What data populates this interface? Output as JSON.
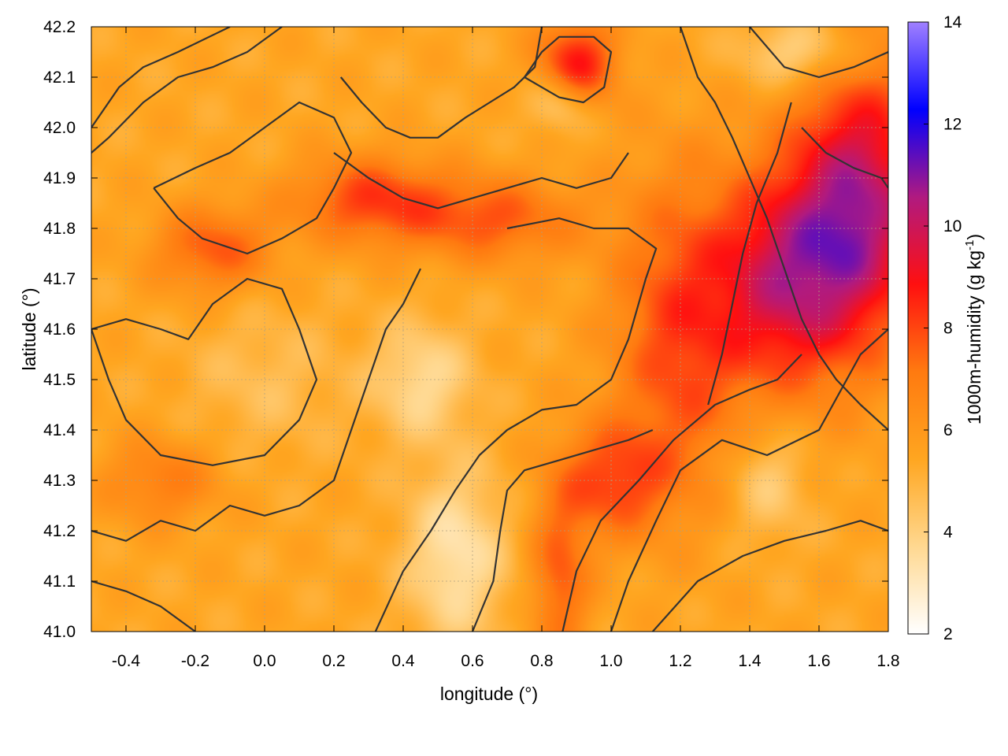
{
  "chart_data": {
    "type": "heatmap",
    "title": "",
    "xlabel": "longitude (°)",
    "ylabel": "latitude (°)",
    "colorbar_label": "1000m-humidity (g kg",
    "colorbar_label_sup": "-1",
    "colorbar_label_end": ")",
    "xlim": [
      -0.5,
      1.8
    ],
    "ylim": [
      41.0,
      42.2
    ],
    "clim": [
      2,
      14
    ],
    "x_ticks": [
      -0.4,
      -0.2,
      0.0,
      0.2,
      0.4,
      0.6,
      0.8,
      1.0,
      1.2,
      1.4,
      1.6,
      1.8
    ],
    "x_tick_labels": [
      "-0.4",
      "-0.2",
      "0.0",
      "0.2",
      "0.4",
      "0.6",
      "0.8",
      "1.0",
      "1.2",
      "1.4",
      "1.6",
      "1.8"
    ],
    "y_ticks": [
      41.0,
      41.1,
      41.2,
      41.3,
      41.4,
      41.5,
      41.6,
      41.7,
      41.8,
      41.9,
      42.0,
      42.1,
      42.2
    ],
    "y_tick_labels": [
      "41.0",
      "41.1",
      "41.2",
      "41.3",
      "41.4",
      "41.5",
      "41.6",
      "41.7",
      "41.8",
      "41.9",
      "42.0",
      "42.1",
      "42.2"
    ],
    "c_ticks": [
      2,
      4,
      6,
      8,
      10,
      12,
      14
    ],
    "c_tick_labels": [
      "2",
      "4",
      "6",
      "8",
      "10",
      "12",
      "14"
    ],
    "grid": true,
    "colormap": [
      "#ffffff",
      "#ffd890",
      "#ffa620",
      "#ff7a10",
      "#ff1010",
      "#b01a80",
      "#0000ff",
      "#a080ff"
    ],
    "contour_color": "#333333",
    "field_centers": [
      {
        "lon": 1.72,
        "lat": 41.85,
        "value": 10.2,
        "sx": 0.14,
        "sy": 0.2
      },
      {
        "lon": 1.5,
        "lat": 41.7,
        "value": 9.3,
        "sx": 0.14,
        "sy": 0.15
      },
      {
        "lon": 0.9,
        "lat": 42.13,
        "value": 8.8,
        "sx": 0.08,
        "sy": 0.06
      },
      {
        "lon": 0.3,
        "lat": 41.86,
        "value": 8.0,
        "sx": 0.15,
        "sy": 0.06
      },
      {
        "lon": 0.65,
        "lat": 41.82,
        "value": 7.7,
        "sx": 0.18,
        "sy": 0.06
      },
      {
        "lon": 1.2,
        "lat": 41.6,
        "value": 8.1,
        "sx": 0.14,
        "sy": 0.22
      },
      {
        "lon": 1.0,
        "lat": 41.3,
        "value": 7.9,
        "sx": 0.12,
        "sy": 0.08
      },
      {
        "lon": 0.85,
        "lat": 41.1,
        "value": 7.6,
        "sx": 0.06,
        "sy": 0.12
      },
      {
        "lon": -0.15,
        "lat": 41.76,
        "value": 7.7,
        "sx": 0.12,
        "sy": 0.06
      },
      {
        "lon": -0.3,
        "lat": 41.3,
        "value": 7.0,
        "sx": 0.12,
        "sy": 0.06
      },
      {
        "lon": 0.45,
        "lat": 41.5,
        "value": 3.6,
        "sx": 0.1,
        "sy": 0.08
      },
      {
        "lon": 0.55,
        "lat": 41.15,
        "value": 3.2,
        "sx": 0.1,
        "sy": 0.12
      },
      {
        "lon": 0.85,
        "lat": 42.05,
        "value": 3.8,
        "sx": 0.06,
        "sy": 0.04
      },
      {
        "lon": 1.55,
        "lat": 42.15,
        "value": 3.5,
        "sx": 0.12,
        "sy": 0.05
      },
      {
        "lon": 1.45,
        "lat": 41.3,
        "value": 4.0,
        "sx": 0.08,
        "sy": 0.08
      },
      {
        "lon": 0.0,
        "lat": 41.5,
        "value": 4.6,
        "sx": 0.15,
        "sy": 0.1
      }
    ],
    "background_value": 5.4,
    "contours": [
      [
        [
          1.0,
          41.0
        ],
        [
          1.05,
          41.1
        ],
        [
          1.13,
          41.22
        ],
        [
          1.2,
          41.32
        ],
        [
          1.32,
          41.38
        ],
        [
          1.45,
          41.35
        ],
        [
          1.6,
          41.4
        ],
        [
          1.68,
          41.5
        ],
        [
          1.72,
          41.55
        ],
        [
          1.8,
          41.6
        ]
      ],
      [
        [
          0.86,
          41.0
        ],
        [
          0.9,
          41.12
        ],
        [
          0.97,
          41.22
        ],
        [
          1.08,
          41.3
        ],
        [
          1.18,
          41.38
        ],
        [
          1.3,
          41.45
        ],
        [
          1.4,
          41.48
        ],
        [
          1.48,
          41.5
        ],
        [
          1.55,
          41.55
        ]
      ],
      [
        [
          1.12,
          41.0
        ],
        [
          1.25,
          41.1
        ],
        [
          1.38,
          41.15
        ],
        [
          1.5,
          41.18
        ],
        [
          1.62,
          41.2
        ],
        [
          1.72,
          41.22
        ],
        [
          1.8,
          41.2
        ]
      ],
      [
        [
          0.32,
          41.0
        ],
        [
          0.4,
          41.12
        ],
        [
          0.48,
          41.2
        ],
        [
          0.55,
          41.28
        ],
        [
          0.62,
          41.35
        ],
        [
          0.7,
          41.4
        ],
        [
          0.8,
          41.44
        ],
        [
          0.9,
          41.45
        ],
        [
          1.0,
          41.5
        ],
        [
          1.05,
          41.58
        ],
        [
          1.1,
          41.7
        ],
        [
          1.13,
          41.76
        ],
        [
          1.05,
          41.8
        ],
        [
          0.95,
          41.8
        ],
        [
          0.85,
          41.82
        ],
        [
          0.7,
          41.8
        ]
      ],
      [
        [
          0.6,
          41.0
        ],
        [
          0.66,
          41.1
        ],
        [
          0.68,
          41.2
        ],
        [
          0.7,
          41.28
        ],
        [
          0.75,
          41.32
        ],
        [
          0.85,
          41.34
        ],
        [
          0.95,
          41.36
        ],
        [
          1.05,
          41.38
        ],
        [
          1.12,
          41.4
        ]
      ],
      [
        [
          -0.5,
          41.6
        ],
        [
          -0.45,
          41.5
        ],
        [
          -0.4,
          41.42
        ],
        [
          -0.3,
          41.35
        ],
        [
          -0.15,
          41.33
        ],
        [
          0.0,
          41.35
        ],
        [
          0.1,
          41.42
        ],
        [
          0.15,
          41.5
        ],
        [
          0.1,
          41.6
        ],
        [
          0.05,
          41.68
        ],
        [
          -0.05,
          41.7
        ],
        [
          -0.15,
          41.65
        ],
        [
          -0.22,
          41.58
        ],
        [
          -0.3,
          41.6
        ],
        [
          -0.4,
          41.62
        ],
        [
          -0.5,
          41.6
        ]
      ],
      [
        [
          -0.5,
          41.2
        ],
        [
          -0.4,
          41.18
        ],
        [
          -0.3,
          41.22
        ],
        [
          -0.2,
          41.2
        ],
        [
          -0.1,
          41.25
        ],
        [
          0.0,
          41.23
        ],
        [
          0.1,
          41.25
        ],
        [
          0.2,
          41.3
        ],
        [
          0.25,
          41.4
        ],
        [
          0.3,
          41.5
        ],
        [
          0.35,
          41.6
        ],
        [
          0.4,
          41.65
        ],
        [
          0.45,
          41.72
        ]
      ],
      [
        [
          -0.5,
          41.1
        ],
        [
          -0.4,
          41.08
        ],
        [
          -0.3,
          41.05
        ],
        [
          -0.2,
          41.0
        ]
      ],
      [
        [
          -0.5,
          41.95
        ],
        [
          -0.45,
          41.98
        ],
        [
          -0.35,
          42.05
        ],
        [
          -0.25,
          42.1
        ],
        [
          -0.15,
          42.12
        ],
        [
          -0.05,
          42.15
        ],
        [
          0.05,
          42.2
        ]
      ],
      [
        [
          -0.5,
          42.0
        ],
        [
          -0.42,
          42.08
        ],
        [
          -0.35,
          42.12
        ],
        [
          -0.25,
          42.15
        ],
        [
          -0.1,
          42.2
        ]
      ],
      [
        [
          -0.32,
          41.88
        ],
        [
          -0.25,
          41.82
        ],
        [
          -0.18,
          41.78
        ],
        [
          -0.05,
          41.75
        ],
        [
          0.05,
          41.78
        ],
        [
          0.15,
          41.82
        ],
        [
          0.2,
          41.88
        ],
        [
          0.25,
          41.95
        ],
        [
          0.2,
          42.02
        ],
        [
          0.1,
          42.05
        ],
        [
          0.0,
          42.0
        ],
        [
          -0.1,
          41.95
        ],
        [
          -0.2,
          41.92
        ],
        [
          -0.32,
          41.88
        ]
      ],
      [
        [
          0.2,
          41.95
        ],
        [
          0.3,
          41.9
        ],
        [
          0.4,
          41.86
        ],
        [
          0.5,
          41.84
        ],
        [
          0.6,
          41.86
        ],
        [
          0.7,
          41.88
        ],
        [
          0.8,
          41.9
        ],
        [
          0.9,
          41.88
        ],
        [
          1.0,
          41.9
        ],
        [
          1.05,
          41.95
        ]
      ],
      [
        [
          0.22,
          42.1
        ],
        [
          0.28,
          42.05
        ],
        [
          0.35,
          42.0
        ],
        [
          0.42,
          41.98
        ],
        [
          0.5,
          41.98
        ],
        [
          0.58,
          42.02
        ],
        [
          0.65,
          42.05
        ],
        [
          0.72,
          42.08
        ],
        [
          0.78,
          42.12
        ],
        [
          0.8,
          42.2
        ]
      ],
      [
        [
          0.75,
          42.1
        ],
        [
          0.8,
          42.15
        ],
        [
          0.85,
          42.18
        ],
        [
          0.95,
          42.18
        ],
        [
          1.0,
          42.15
        ],
        [
          0.98,
          42.08
        ],
        [
          0.92,
          42.05
        ],
        [
          0.85,
          42.06
        ],
        [
          0.8,
          42.08
        ],
        [
          0.75,
          42.1
        ]
      ],
      [
        [
          1.2,
          42.2
        ],
        [
          1.25,
          42.1
        ],
        [
          1.3,
          42.05
        ],
        [
          1.35,
          41.98
        ],
        [
          1.4,
          41.9
        ],
        [
          1.45,
          41.82
        ],
        [
          1.5,
          41.72
        ],
        [
          1.55,
          41.62
        ],
        [
          1.6,
          41.55
        ],
        [
          1.65,
          41.5
        ],
        [
          1.72,
          41.45
        ],
        [
          1.8,
          41.4
        ]
      ],
      [
        [
          1.4,
          42.2
        ],
        [
          1.5,
          42.12
        ],
        [
          1.6,
          42.1
        ],
        [
          1.7,
          42.12
        ],
        [
          1.8,
          42.15
        ]
      ],
      [
        [
          1.55,
          42.0
        ],
        [
          1.62,
          41.95
        ],
        [
          1.7,
          41.92
        ],
        [
          1.78,
          41.9
        ],
        [
          1.8,
          41.88
        ]
      ],
      [
        [
          1.28,
          41.45
        ],
        [
          1.32,
          41.55
        ],
        [
          1.35,
          41.65
        ],
        [
          1.38,
          41.75
        ],
        [
          1.42,
          41.85
        ],
        [
          1.48,
          41.95
        ],
        [
          1.52,
          42.05
        ]
      ]
    ]
  }
}
